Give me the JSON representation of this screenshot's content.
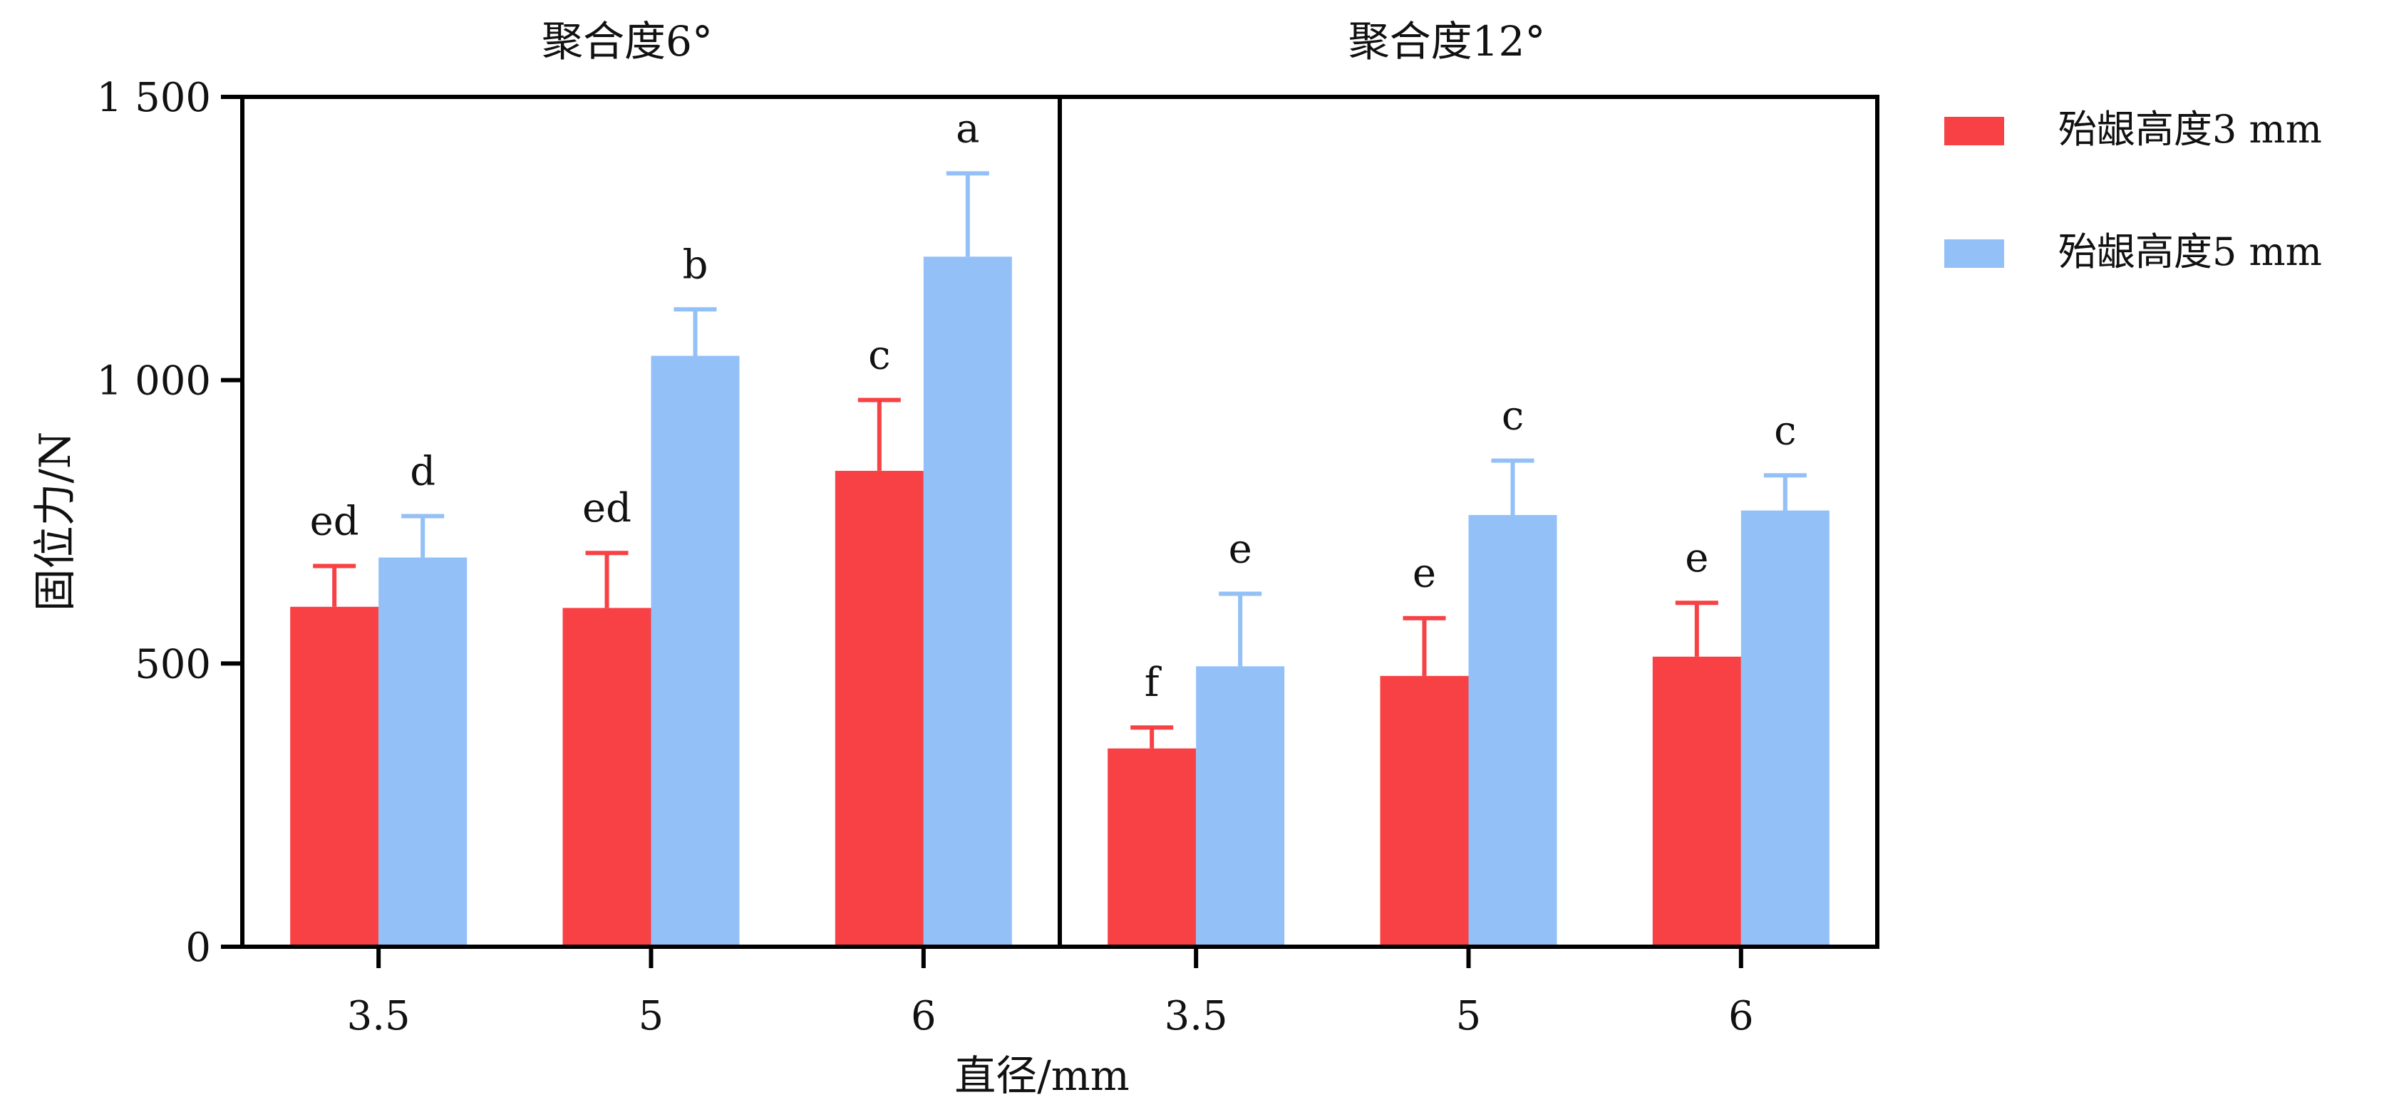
{
  "chart_data": {
    "type": "bar",
    "ylabel": "固位力/N",
    "xlabel": "直径/mm",
    "ylim": [
      0,
      1500
    ],
    "yticks": [
      {
        "value": 0,
        "label": "0"
      },
      {
        "value": 500,
        "label": "500"
      },
      {
        "value": 1000,
        "label": "1 000"
      },
      {
        "value": 1500,
        "label": "1 500"
      }
    ],
    "legend": {
      "placement": "right",
      "entries": [
        {
          "name": "殆龈高度3 mm",
          "color": "#f74144"
        },
        {
          "name": "殆龈高度5 mm",
          "color": "#93c0f7"
        }
      ]
    },
    "panels": [
      {
        "title": "聚合度6°",
        "categories": [
          "3.5",
          "5",
          "6"
        ],
        "series": [
          {
            "name": "殆龈高度3 mm",
            "values": [
              600,
              598,
              840
            ],
            "errors": [
              72,
              97,
              125
            ],
            "labels": [
              "ed",
              "ed",
              "c"
            ]
          },
          {
            "name": "殆龈高度5 mm",
            "values": [
              687,
              1043,
              1218
            ],
            "errors": [
              73,
              82,
              147
            ],
            "labels": [
              "d",
              "b",
              "a"
            ]
          }
        ]
      },
      {
        "title": "聚合度12°",
        "categories": [
          "3.5",
          "5",
          "6"
        ],
        "series": [
          {
            "name": "殆龈高度3 mm",
            "values": [
              350,
              478,
              512
            ],
            "errors": [
              37,
              102,
              95
            ],
            "labels": [
              "f",
              "e",
              "e"
            ]
          },
          {
            "name": "殆龈高度5 mm",
            "values": [
              495,
              762,
              770
            ],
            "errors": [
              128,
              96,
              62
            ],
            "labels": [
              "e",
              "c",
              "c"
            ]
          }
        ]
      }
    ]
  }
}
